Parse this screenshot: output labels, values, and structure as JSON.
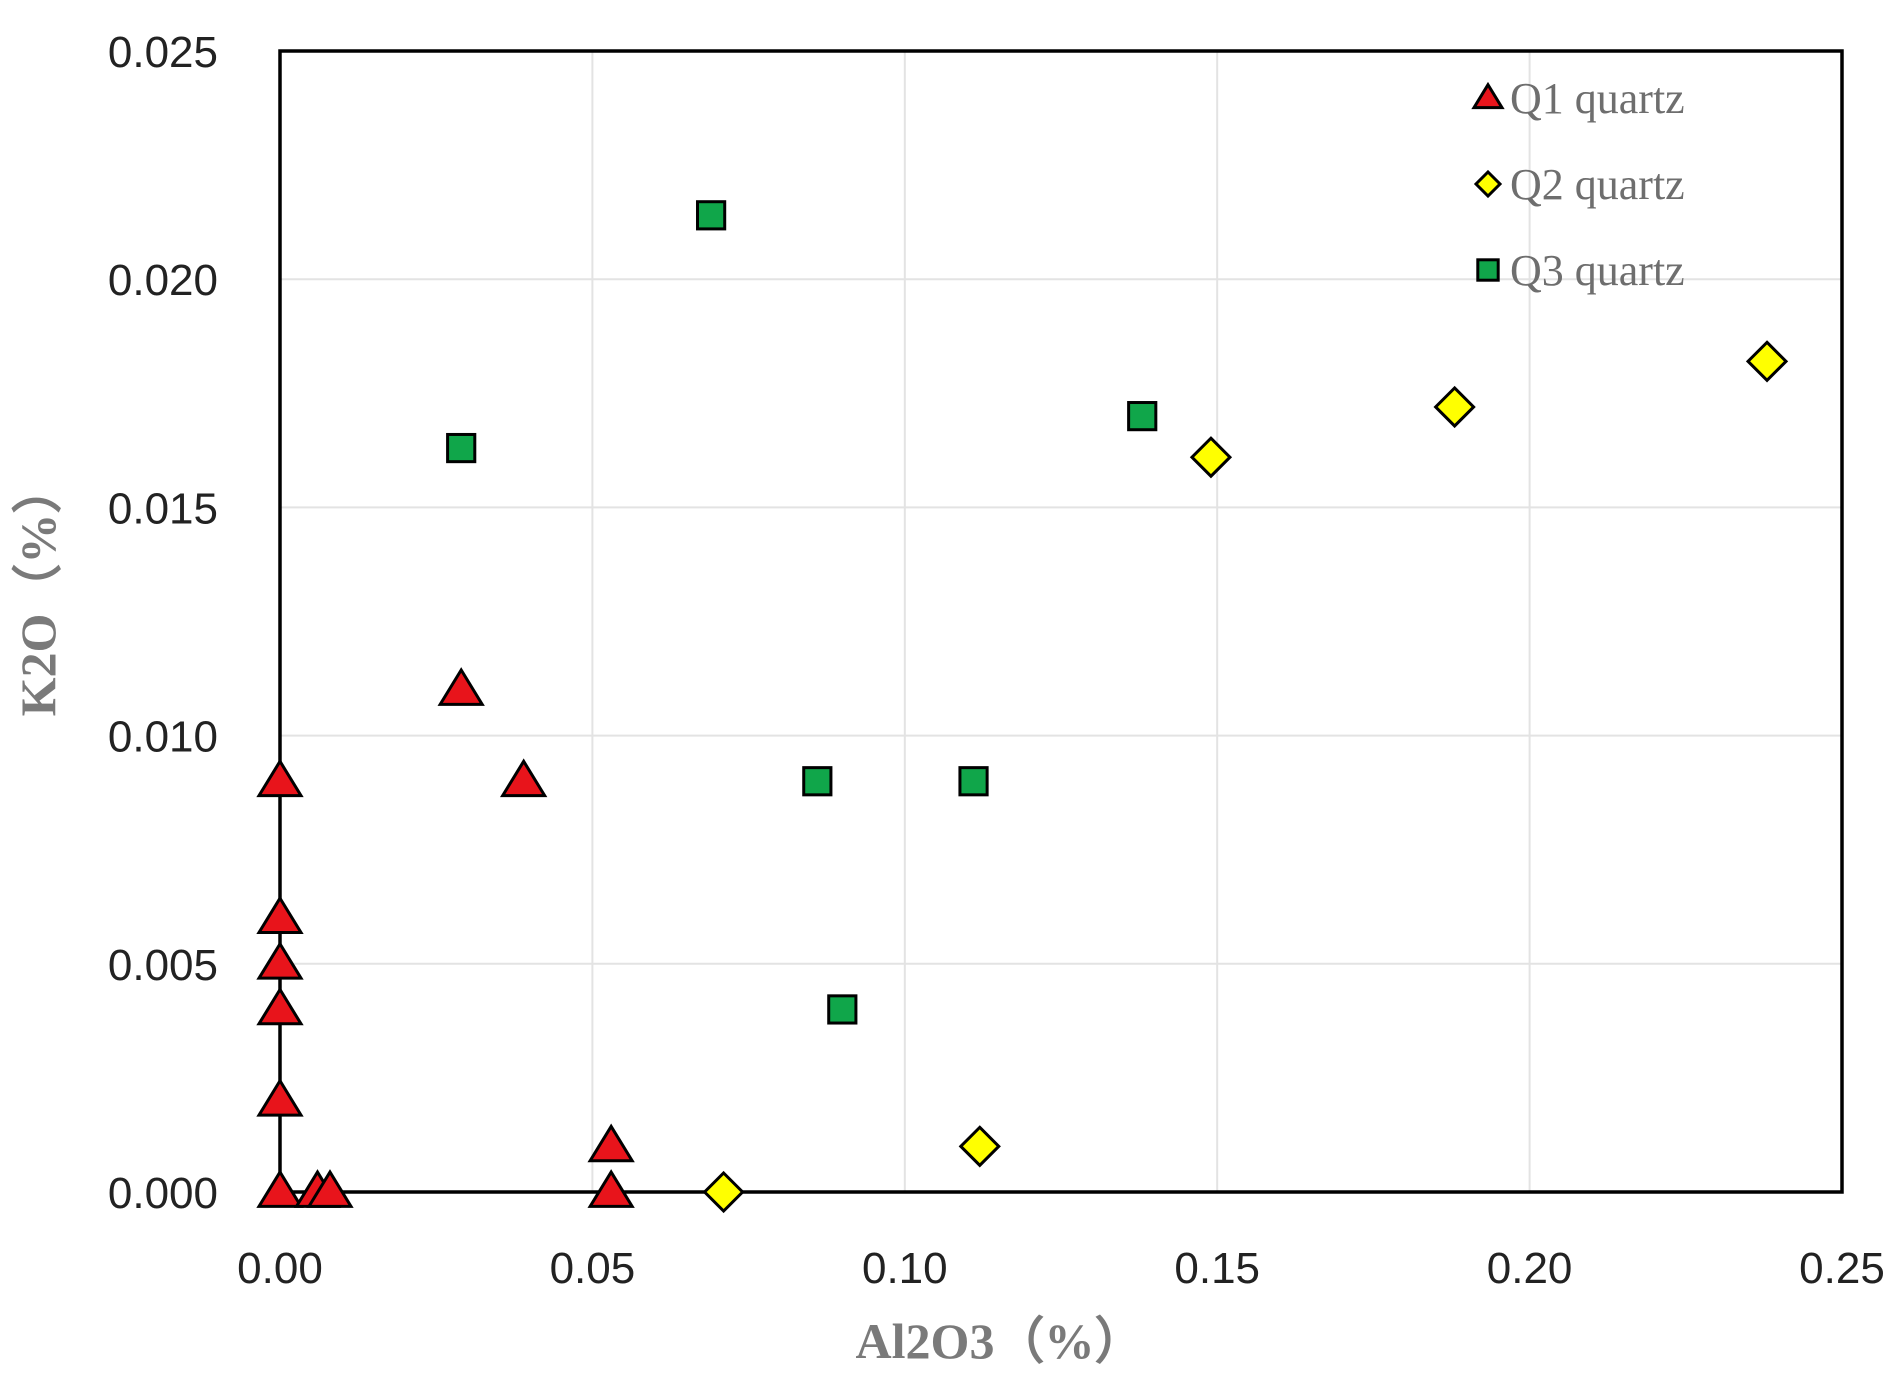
{
  "chart_data": {
    "type": "scatter",
    "xlabel": "Al2O3（%）",
    "ylabel": "K2O（%）",
    "xlim": [
      0,
      0.25
    ],
    "ylim": [
      0,
      0.025
    ],
    "x_ticks": [
      "0.00",
      "0.05",
      "0.10",
      "0.15",
      "0.20",
      "0.25"
    ],
    "y_ticks": [
      "0.000",
      "0.005",
      "0.010",
      "0.015",
      "0.020",
      "0.025"
    ],
    "grid": true,
    "legend_position": "top-right",
    "series": [
      {
        "name": "Q1 quartz",
        "marker": "triangle",
        "color": "#e8141b",
        "points": [
          [
            0.0,
            0.0
          ],
          [
            0.006,
            0.0
          ],
          [
            0.008,
            0.0
          ],
          [
            0.053,
            0.0
          ],
          [
            0.053,
            0.001
          ],
          [
            0.0,
            0.002
          ],
          [
            0.0,
            0.004
          ],
          [
            0.0,
            0.005
          ],
          [
            0.0,
            0.006
          ],
          [
            0.0,
            0.009
          ],
          [
            0.029,
            0.011
          ],
          [
            0.039,
            0.009
          ]
        ]
      },
      {
        "name": "Q2 quartz",
        "marker": "diamond",
        "color": "#ffff00",
        "points": [
          [
            0.071,
            0.0
          ],
          [
            0.112,
            0.001
          ],
          [
            0.149,
            0.0161
          ],
          [
            0.188,
            0.0172
          ],
          [
            0.238,
            0.0182
          ]
        ]
      },
      {
        "name": "Q3 quartz",
        "marker": "square",
        "color": "#10a64a",
        "points": [
          [
            0.069,
            0.0214
          ],
          [
            0.029,
            0.0163
          ],
          [
            0.138,
            0.017
          ],
          [
            0.086,
            0.009
          ],
          [
            0.111,
            0.009
          ],
          [
            0.09,
            0.004
          ]
        ]
      }
    ]
  }
}
